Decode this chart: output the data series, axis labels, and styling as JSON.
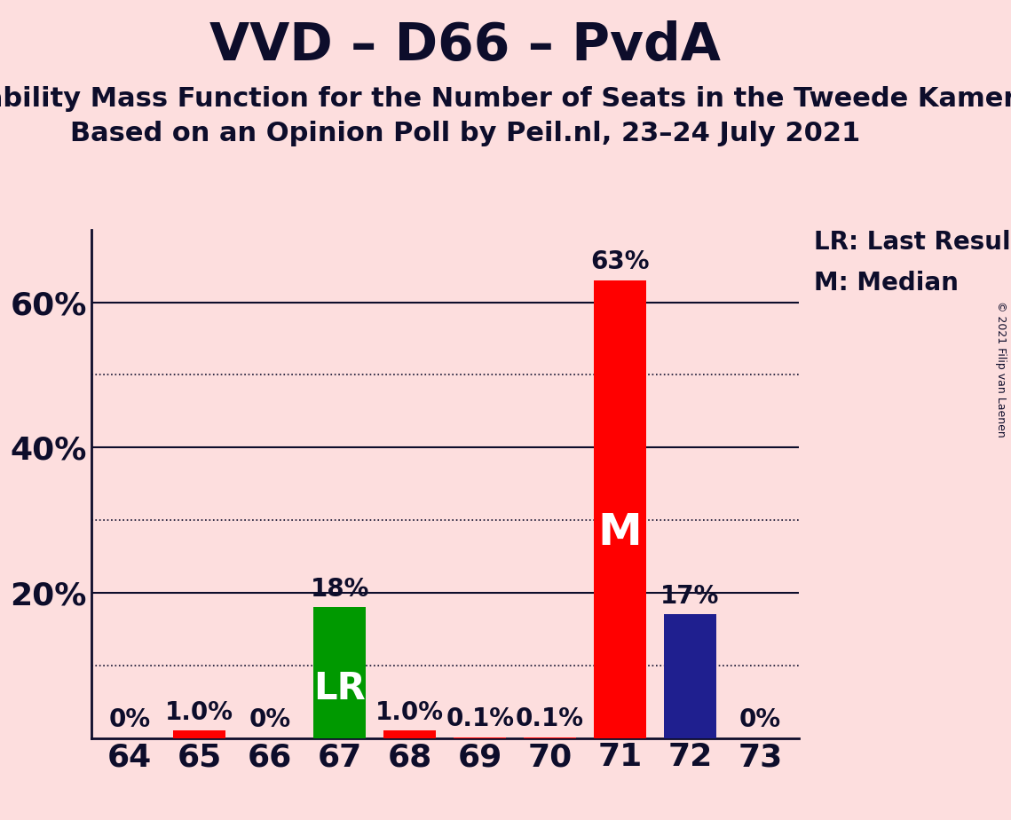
{
  "title": "VVD – D66 – PvdA",
  "subtitle1": "Probability Mass Function for the Number of Seats in the Tweede Kamer",
  "subtitle2": "Based on an Opinion Poll by Peil.nl, 23–24 July 2021",
  "copyright": "© 2021 Filip van Laenen",
  "seats": [
    64,
    65,
    66,
    67,
    68,
    69,
    70,
    71,
    72,
    73
  ],
  "values": [
    0.0,
    1.0,
    0.0,
    18.0,
    1.0,
    0.1,
    0.1,
    63.0,
    17.0,
    0.0
  ],
  "bar_colors": [
    "#FF0000",
    "#FF0000",
    "#FF0000",
    "#009900",
    "#FF0000",
    "#FF0000",
    "#FF0000",
    "#FF0000",
    "#1F1F8F",
    "#FF0000"
  ],
  "bar_labels": [
    "0%",
    "1.0%",
    "0%",
    "18%",
    "1.0%",
    "0.1%",
    "0.1%",
    "63%",
    "17%",
    "0%"
  ],
  "lr_seat": 67,
  "median_seat": 71,
  "background_color": "#FDDEDE",
  "title_color": "#0D0D2B",
  "ylabel_ticks": [
    20,
    40,
    60
  ],
  "ylim": [
    0,
    70
  ],
  "legend_lr": "LR: Last Result",
  "legend_m": "M: Median",
  "bar_label_size": 20,
  "bar_inner_label_size": 30,
  "title_fontsize": 42,
  "subtitle_fontsize": 22,
  "tick_fontsize": 26,
  "solid_gridlines": [
    20,
    40,
    60
  ],
  "dotted_gridlines": [
    10,
    30,
    50
  ]
}
